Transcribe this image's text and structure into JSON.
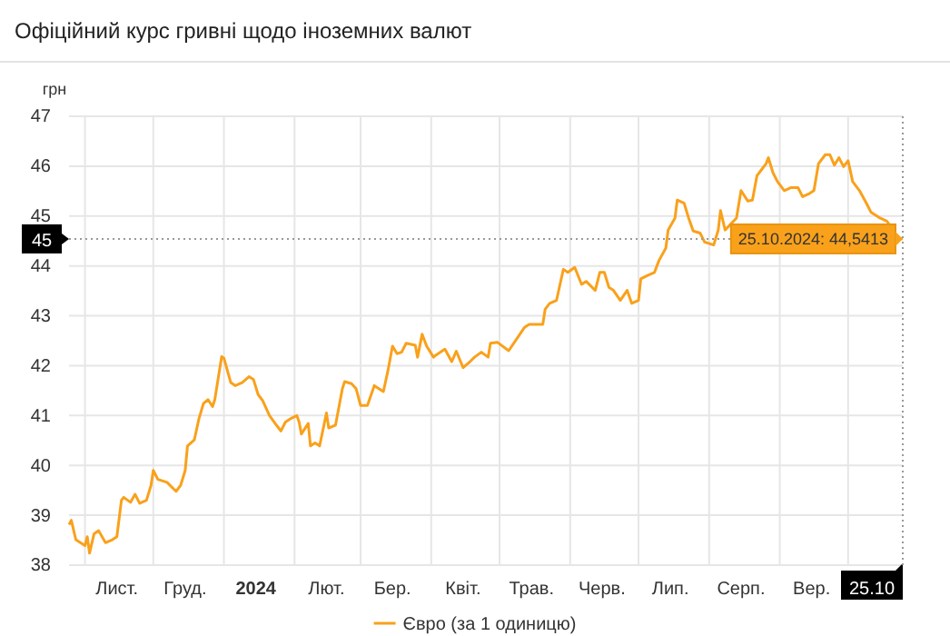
{
  "chart_data": {
    "type": "line",
    "title": "Офіційний курс гривні щодо іноземних валют",
    "ylabel": "грн",
    "xlim": [
      "2023-10-25",
      "2024-10-25"
    ],
    "ylim": [
      38,
      47
    ],
    "yticks": [
      38,
      39,
      40,
      41,
      42,
      43,
      44,
      45,
      46,
      47
    ],
    "xticks": [
      {
        "value": "2023-11-01",
        "label": null
      },
      {
        "value": "2023-11-15",
        "label": "Лист."
      },
      {
        "value": "2023-12-01",
        "label": null
      },
      {
        "value": "2023-12-15",
        "label": "Груд."
      },
      {
        "value": "2024-01-01",
        "label": null
      },
      {
        "value": "2024-01-15",
        "label": "2024"
      },
      {
        "value": "2024-02-01",
        "label": null
      },
      {
        "value": "2024-02-15",
        "label": "Лют."
      },
      {
        "value": "2024-03-01",
        "label": null
      },
      {
        "value": "2024-03-15",
        "label": "Бер."
      },
      {
        "value": "2024-04-01",
        "label": null
      },
      {
        "value": "2024-04-15",
        "label": "Квіт."
      },
      {
        "value": "2024-05-01",
        "label": null
      },
      {
        "value": "2024-05-15",
        "label": "Трав."
      },
      {
        "value": "2024-06-01",
        "label": null
      },
      {
        "value": "2024-06-15",
        "label": "Черв."
      },
      {
        "value": "2024-07-01",
        "label": null
      },
      {
        "value": "2024-07-15",
        "label": "Лип."
      },
      {
        "value": "2024-08-01",
        "label": null
      },
      {
        "value": "2024-08-15",
        "label": "Серп."
      },
      {
        "value": "2024-09-01",
        "label": null
      },
      {
        "value": "2024-09-15",
        "label": "Вер."
      },
      {
        "value": "2024-10-01",
        "label": null
      },
      {
        "value": "2024-10-25",
        "label": "25.10"
      }
    ],
    "grid": true,
    "legend": "bottom",
    "marker": "none",
    "line_style": "solid",
    "ref_lines": [
      {
        "axis": "y",
        "value": 44.5413,
        "label": "45",
        "line_style": "dotted",
        "color": "#999999"
      },
      {
        "axis": "x",
        "value": "2024-10-25",
        "line_style": "dotted",
        "color": "#999999"
      }
    ],
    "annotations": [
      {
        "text": "25.10.2024: 44,5413",
        "x": "2024-10-25",
        "y": 44.5413
      }
    ],
    "series": [
      {
        "name": "Євро (за 1 одиницю)",
        "color": "#f9a11b",
        "x": [
          "2023-10-25",
          "2023-10-26",
          "2023-10-28",
          "2023-10-30",
          "2023-11-01",
          "2023-11-02",
          "2023-11-03",
          "2023-11-05",
          "2023-11-07",
          "2023-11-10",
          "2023-11-13",
          "2023-11-15",
          "2023-11-17",
          "2023-11-18",
          "2023-11-21",
          "2023-11-23",
          "2023-11-25",
          "2023-11-28",
          "2023-11-30",
          "2023-12-01",
          "2023-12-03",
          "2023-12-07",
          "2023-12-11",
          "2023-12-13",
          "2023-12-15",
          "2023-12-16",
          "2023-12-19",
          "2023-12-21",
          "2023-12-23",
          "2023-12-25",
          "2023-12-27",
          "2023-12-28",
          "2023-12-31",
          "2024-01-01",
          "2024-01-04",
          "2024-01-06",
          "2024-01-09",
          "2024-01-12",
          "2024-01-14",
          "2024-01-16",
          "2024-01-18",
          "2024-01-21",
          "2024-01-24",
          "2024-01-26",
          "2024-01-28",
          "2024-01-30",
          "2024-02-02",
          "2024-02-03",
          "2024-02-04",
          "2024-02-07",
          "2024-02-08",
          "2024-02-10",
          "2024-02-12",
          "2024-02-15",
          "2024-02-16",
          "2024-02-19",
          "2024-02-22",
          "2024-02-23",
          "2024-02-26",
          "2024-02-28",
          "2024-03-01",
          "2024-03-04",
          "2024-03-07",
          "2024-03-11",
          "2024-03-13",
          "2024-03-15",
          "2024-03-17",
          "2024-03-19",
          "2024-03-21",
          "2024-03-25",
          "2024-03-26",
          "2024-03-28",
          "2024-03-30",
          "2024-04-02",
          "2024-04-03",
          "2024-04-07",
          "2024-04-10",
          "2024-04-12",
          "2024-04-15",
          "2024-04-18",
          "2024-04-20",
          "2024-04-23",
          "2024-04-26",
          "2024-04-27",
          "2024-04-30",
          "2024-05-05",
          "2024-05-12",
          "2024-05-14",
          "2024-05-20",
          "2024-05-21",
          "2024-05-23",
          "2024-05-26",
          "2024-05-29",
          "2024-05-31",
          "2024-06-03",
          "2024-06-06",
          "2024-06-08",
          "2024-06-12",
          "2024-06-14",
          "2024-06-16",
          "2024-06-18",
          "2024-06-20",
          "2024-06-23",
          "2024-06-26",
          "2024-06-28",
          "2024-07-01",
          "2024-07-02",
          "2024-07-05",
          "2024-07-08",
          "2024-07-10",
          "2024-07-13",
          "2024-07-14",
          "2024-07-17",
          "2024-07-18",
          "2024-07-21",
          "2024-07-23",
          "2024-07-25",
          "2024-07-28",
          "2024-07-30",
          "2024-08-03",
          "2024-08-05",
          "2024-08-06",
          "2024-08-08",
          "2024-08-13",
          "2024-08-15",
          "2024-08-18",
          "2024-08-20",
          "2024-08-22",
          "2024-08-24",
          "2024-08-26",
          "2024-08-27",
          "2024-08-29",
          "2024-08-31",
          "2024-09-03",
          "2024-09-06",
          "2024-09-09",
          "2024-09-11",
          "2024-09-14",
          "2024-09-16",
          "2024-09-18",
          "2024-09-21",
          "2024-09-23",
          "2024-09-25",
          "2024-09-27",
          "2024-09-29",
          "2024-10-01",
          "2024-10-03",
          "2024-10-06",
          "2024-10-09",
          "2024-10-11",
          "2024-10-15",
          "2024-10-18",
          "2024-10-21",
          "2024-10-22",
          "2024-10-25"
        ],
        "values": [
          38.81,
          38.9,
          38.51,
          38.45,
          38.39,
          38.57,
          38.24,
          38.63,
          38.69,
          38.45,
          38.51,
          38.57,
          39.3,
          39.36,
          39.26,
          39.42,
          39.24,
          39.3,
          39.6,
          39.9,
          39.72,
          39.66,
          39.48,
          39.6,
          39.9,
          40.39,
          40.51,
          40.93,
          41.24,
          41.32,
          41.18,
          41.32,
          42.18,
          42.15,
          41.66,
          41.6,
          41.66,
          41.78,
          41.72,
          41.42,
          41.3,
          41.0,
          40.81,
          40.69,
          40.87,
          40.93,
          41.0,
          40.87,
          40.63,
          40.84,
          40.39,
          40.45,
          40.39,
          41.05,
          40.75,
          40.81,
          41.54,
          41.68,
          41.64,
          41.54,
          41.2,
          41.2,
          41.6,
          41.48,
          41.9,
          42.39,
          42.24,
          42.27,
          42.45,
          42.41,
          42.17,
          42.63,
          42.39,
          42.17,
          42.21,
          42.33,
          42.08,
          42.29,
          41.96,
          42.08,
          42.17,
          42.27,
          42.17,
          42.45,
          42.47,
          42.3,
          42.77,
          42.83,
          42.83,
          43.13,
          43.25,
          43.31,
          43.93,
          43.87,
          43.97,
          43.63,
          43.69,
          43.51,
          43.87,
          43.87,
          43.57,
          43.51,
          43.31,
          43.51,
          43.25,
          43.31,
          43.74,
          43.81,
          43.87,
          44.11,
          44.36,
          44.72,
          44.96,
          45.32,
          45.26,
          44.96,
          44.7,
          44.66,
          44.48,
          44.42,
          44.72,
          45.11,
          44.72,
          44.96,
          45.51,
          45.3,
          45.32,
          45.81,
          45.93,
          46.05,
          46.17,
          45.87,
          45.69,
          45.51,
          45.57,
          45.57,
          45.39,
          45.45,
          45.51,
          46.05,
          46.23,
          46.23,
          46.02,
          46.17,
          45.99,
          46.11,
          45.69,
          45.51,
          45.26,
          45.08,
          44.96,
          44.9,
          44.7,
          44.57,
          44.54
        ]
      }
    ]
  }
}
